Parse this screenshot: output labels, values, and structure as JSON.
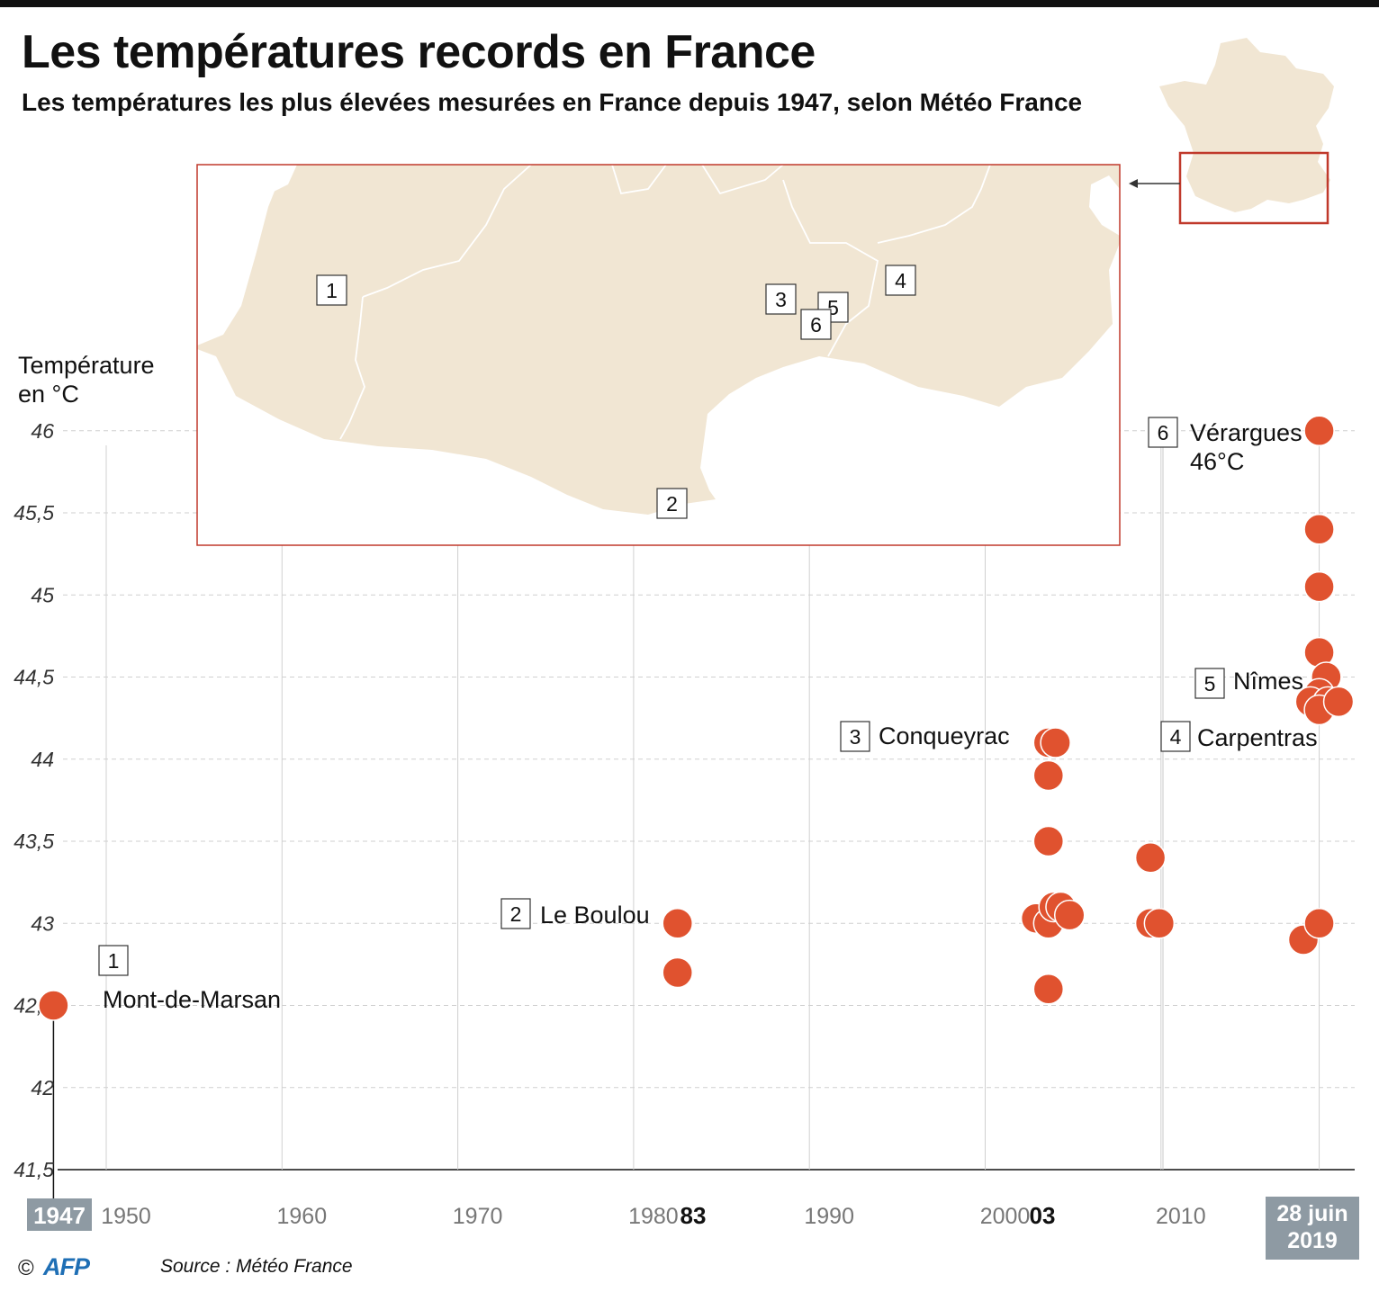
{
  "header": {
    "title": "Les températures records en France",
    "subtitle": "Les températures les plus élevées mesurées en France depuis 1947, selon Météo France"
  },
  "axis": {
    "ylabel": "Température\nen °C",
    "yticks": [
      "41,5",
      "42",
      "42,5",
      "43",
      "43,5",
      "44",
      "44,5",
      "45",
      "45,5",
      "46"
    ],
    "xticks": [
      "1950",
      "1960",
      "1970",
      "1980",
      "1990",
      "2000",
      "2010"
    ],
    "xhighlights": [
      {
        "label": "1947",
        "style": "box"
      },
      {
        "label": "83",
        "style": "bold"
      },
      {
        "label": "03",
        "style": "bold"
      },
      {
        "label": "28 juin\n2019",
        "style": "box"
      }
    ]
  },
  "chart_data": {
    "type": "scatter",
    "title": "Les températures records en France",
    "subtitle": "Les températures les plus élevées mesurées en France depuis 1947, selon Météo France",
    "ylabel": "Température en °C",
    "xlim": [
      1947,
      2019.5
    ],
    "ylim": [
      41.5,
      46
    ],
    "grid": true,
    "points": [
      {
        "x": 1947.0,
        "y": 42.5
      },
      {
        "x": 1982.5,
        "y": 43.0
      },
      {
        "x": 1982.5,
        "y": 42.7
      },
      {
        "x": 2003.6,
        "y": 44.1
      },
      {
        "x": 2004.0,
        "y": 44.1
      },
      {
        "x": 2003.6,
        "y": 43.9
      },
      {
        "x": 2003.6,
        "y": 43.5
      },
      {
        "x": 2002.9,
        "y": 43.03
      },
      {
        "x": 2003.6,
        "y": 43.0
      },
      {
        "x": 2003.9,
        "y": 43.1
      },
      {
        "x": 2004.3,
        "y": 43.1
      },
      {
        "x": 2004.8,
        "y": 43.05
      },
      {
        "x": 2003.6,
        "y": 42.6
      },
      {
        "x": 2009.4,
        "y": 43.4
      },
      {
        "x": 2009.4,
        "y": 43.0
      },
      {
        "x": 2009.9,
        "y": 43.0
      },
      {
        "x": 2018.1,
        "y": 42.9
      },
      {
        "x": 2019.0,
        "y": 43.0
      },
      {
        "x": 2019.0,
        "y": 46.0
      },
      {
        "x": 2019.0,
        "y": 45.4
      },
      {
        "x": 2019.0,
        "y": 45.05
      },
      {
        "x": 2019.0,
        "y": 44.65
      },
      {
        "x": 2019.4,
        "y": 44.5
      },
      {
        "x": 2019.0,
        "y": 44.4
      },
      {
        "x": 2018.5,
        "y": 44.35
      },
      {
        "x": 2019.5,
        "y": 44.35
      },
      {
        "x": 2019.0,
        "y": 44.3
      },
      {
        "x": 2020.1,
        "y": 44.35
      }
    ],
    "annotations": [
      {
        "num": "1",
        "label": "Mont-de-Marsan",
        "year": 1947,
        "temp": 42.5
      },
      {
        "num": "2",
        "label": "Le Boulou",
        "year": 1983,
        "temp": 43.0
      },
      {
        "num": "3",
        "label": "Conqueyrac",
        "year": 2003,
        "temp": 44.1
      },
      {
        "num": "4",
        "label": "Carpentras",
        "year": 2019,
        "temp": 44.4
      },
      {
        "num": "5",
        "label": "Nîmes",
        "year": 2019,
        "temp": 44.5
      },
      {
        "num": "6",
        "label": "Vérargues\n46°C",
        "year": 2019,
        "temp": 46.0
      }
    ]
  },
  "map": {
    "markers": [
      "1",
      "2",
      "3",
      "4",
      "5",
      "6"
    ]
  },
  "footer": {
    "copyright": "©",
    "logo": "AFP",
    "source": "Source : Météo France"
  }
}
